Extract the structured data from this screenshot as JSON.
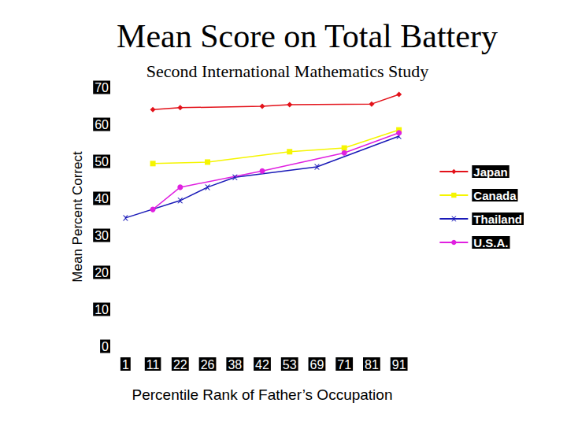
{
  "chart_data": {
    "type": "line",
    "title": "Mean Score on Total Battery",
    "subtitle": "Second International Mathematics Study",
    "x_label": "Percentile Rank of Father’s Occupation",
    "y_label": "Mean Percent Correct",
    "categories": [
      "1",
      "11",
      "22",
      "26",
      "38",
      "42",
      "53",
      "69",
      "71",
      "81",
      "91"
    ],
    "series": [
      {
        "name": "Japan",
        "color": "#e3121a",
        "marker": "diamond",
        "values": [
          null,
          64.0,
          64.5,
          null,
          null,
          64.9,
          65.3,
          null,
          null,
          65.5,
          68.1
        ]
      },
      {
        "name": "Canada",
        "color": "#f5f500",
        "marker": "square",
        "values": [
          null,
          49.4,
          null,
          49.8,
          null,
          null,
          52.6,
          null,
          53.6,
          null,
          58.5
        ]
      },
      {
        "name": "Thailand",
        "color": "#1a1ab8",
        "marker": "x",
        "values": [
          34.7,
          null,
          39.4,
          43.0,
          45.7,
          null,
          null,
          48.5,
          null,
          null,
          56.8
        ]
      },
      {
        "name": "U.S.A.",
        "color": "#e020e0",
        "marker": "circle",
        "values": [
          null,
          37.0,
          43.0,
          null,
          null,
          47.4,
          null,
          null,
          52.3,
          null,
          57.7
        ]
      }
    ],
    "ylim": [
      0,
      70
    ],
    "yticks": [
      0,
      10,
      20,
      30,
      40,
      50,
      60,
      70
    ],
    "grid": false,
    "legend": "right"
  }
}
